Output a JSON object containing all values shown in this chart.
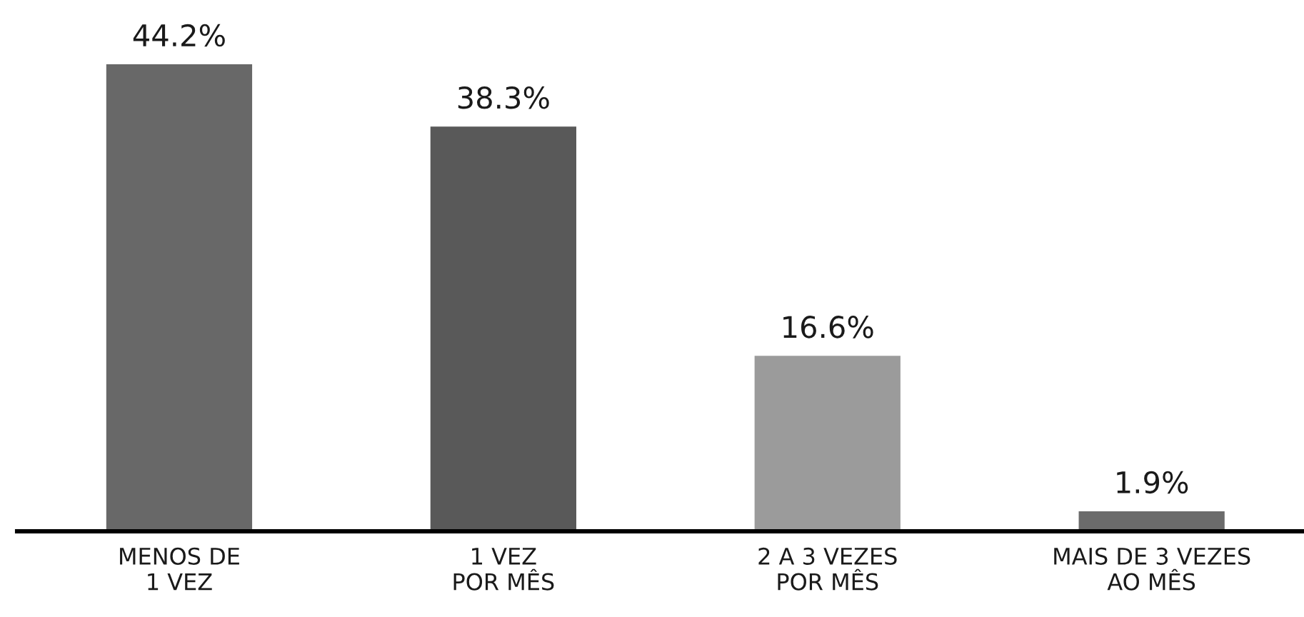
{
  "chart_data": {
    "type": "bar",
    "categories": [
      "MENOS DE\n1 VEZ",
      "1 VEZ\nPOR MÊS",
      "2 A 3 VEZES\nPOR MÊS",
      "MAIS DE 3 VEZES\nAO MÊS"
    ],
    "values": [
      44.2,
      38.3,
      16.6,
      1.9
    ],
    "colors": [
      "#686868",
      "#595959",
      "#9b9b9b",
      "#6b6b6b"
    ],
    "value_labels": [
      "44.2%",
      "38.3%",
      "16.6%",
      "1.9%"
    ],
    "grid": false,
    "legend": false
  }
}
